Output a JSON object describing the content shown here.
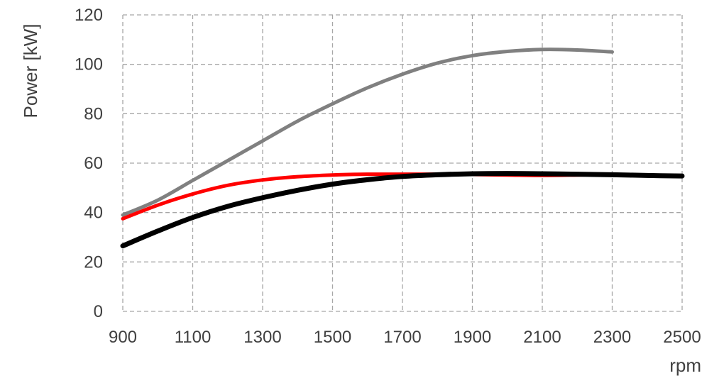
{
  "chart_data": {
    "type": "line",
    "title": "",
    "xlabel": "rpm",
    "ylabel": "Power [kW]",
    "xlim": [
      900,
      2500
    ],
    "ylim": [
      0,
      120
    ],
    "x_ticks": [
      "900",
      "1100",
      "1300",
      "1500",
      "1700",
      "1900",
      "2100",
      "2300",
      "2500"
    ],
    "y_ticks": [
      "0",
      "20",
      "40",
      "60",
      "80",
      "100",
      "120"
    ],
    "grid": true,
    "legend": "none",
    "series": [
      {
        "color": "#808080",
        "points": [
          [
            900,
            39
          ],
          [
            1000,
            45
          ],
          [
            1100,
            53
          ],
          [
            1200,
            61
          ],
          [
            1300,
            69
          ],
          [
            1400,
            77
          ],
          [
            1500,
            84
          ],
          [
            1600,
            90.5
          ],
          [
            1700,
            96
          ],
          [
            1800,
            100.5
          ],
          [
            1900,
            103.5
          ],
          [
            2000,
            105.2
          ],
          [
            2100,
            106
          ],
          [
            2200,
            105.8
          ],
          [
            2300,
            105
          ]
        ]
      },
      {
        "color": "#ff0000",
        "points": [
          [
            900,
            37.5
          ],
          [
            1000,
            43
          ],
          [
            1100,
            47.5
          ],
          [
            1200,
            51
          ],
          [
            1300,
            53.2
          ],
          [
            1400,
            54.5
          ],
          [
            1500,
            55.2
          ],
          [
            1600,
            55.5
          ],
          [
            1700,
            55.5
          ],
          [
            1800,
            55.5
          ],
          [
            1900,
            55.4
          ],
          [
            2000,
            55.2
          ],
          [
            2100,
            55
          ],
          [
            2200,
            55.2
          ],
          [
            2300,
            55.5
          ]
        ]
      },
      {
        "color": "#000000",
        "points": [
          [
            900,
            26.5
          ],
          [
            1000,
            32.5
          ],
          [
            1100,
            38
          ],
          [
            1200,
            42.5
          ],
          [
            1300,
            46
          ],
          [
            1400,
            49
          ],
          [
            1500,
            51.5
          ],
          [
            1600,
            53.3
          ],
          [
            1700,
            54.6
          ],
          [
            1800,
            55.3
          ],
          [
            1900,
            55.7
          ],
          [
            2000,
            55.8
          ],
          [
            2100,
            55.7
          ],
          [
            2200,
            55.5
          ],
          [
            2300,
            55.3
          ],
          [
            2400,
            55
          ],
          [
            2500,
            54.8
          ]
        ]
      }
    ]
  }
}
